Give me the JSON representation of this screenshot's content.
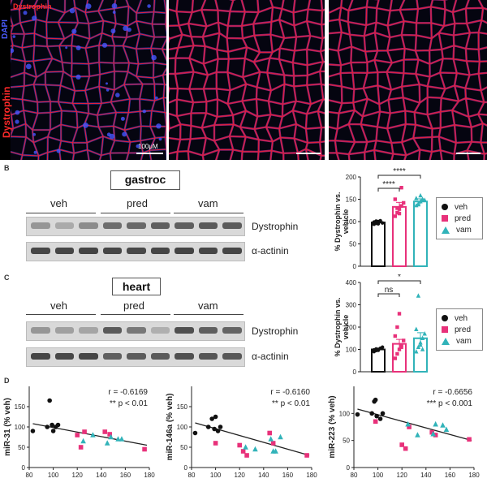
{
  "panel_a": {
    "dapi_label": "DAPI",
    "dystrophin_left_label": "Dystrophin",
    "dystrophin_top_label": "Dystrophin",
    "scale_bar_label": "100μM"
  },
  "panel_b": {
    "letter": "B",
    "title": "gastroc",
    "groups": [
      "veh",
      "pred",
      "vam"
    ],
    "rows": [
      "Dystrophin",
      "α-actinin"
    ],
    "sig_top": "****",
    "sig_second": "****"
  },
  "panel_c": {
    "letter": "C",
    "title": "heart",
    "groups": [
      "veh",
      "pred",
      "vam"
    ],
    "rows": [
      "Dystrophin",
      "α-actinin"
    ],
    "sig_top": "*",
    "sig_second": "ns"
  },
  "panel_d": {
    "letter": "D"
  },
  "legend": {
    "items": [
      "veh",
      "pred",
      "vam"
    ]
  },
  "colors": {
    "veh": "#111111",
    "pred": "#e8317a",
    "vam": "#31b3b9"
  },
  "chart_data": [
    {
      "id": "gastroc-bar",
      "type": "bar",
      "ylabel": "% Dystrophin vs. vehicle",
      "ylim": [
        0,
        200
      ],
      "yticks": [
        "0",
        "50",
        "100",
        "150",
        "200"
      ],
      "categories": [
        "veh",
        "pred",
        "vam"
      ],
      "values": [
        98,
        133,
        145
      ],
      "errors": [
        4,
        10,
        6
      ],
      "points": [
        [
          94,
          96,
          100,
          102,
          97,
          99,
          101,
          95
        ],
        [
          112,
          120,
          128,
          135,
          142,
          150,
          130,
          118,
          176
        ],
        [
          136,
          140,
          145,
          150,
          148,
          152,
          138,
          158
        ]
      ],
      "annotations": [
        "****",
        "****"
      ]
    },
    {
      "id": "heart-bar",
      "type": "bar",
      "ylabel": "% Dystrophin vs. vehicle",
      "ylim": [
        0,
        400
      ],
      "yticks": [
        "0",
        "100",
        "200",
        "300",
        "400"
      ],
      "categories": [
        "veh",
        "pred",
        "vam"
      ],
      "values": [
        100,
        125,
        150
      ],
      "errors": [
        5,
        20,
        25
      ],
      "points": [
        [
          90,
          95,
          100,
          105,
          110,
          98,
          102,
          96
        ],
        [
          60,
          80,
          100,
          120,
          140,
          160,
          200,
          260,
          110
        ],
        [
          90,
          110,
          130,
          150,
          170,
          190,
          340,
          120,
          100
        ]
      ],
      "annotations": [
        "ns",
        "*"
      ]
    },
    {
      "id": "mir31-scatter",
      "type": "scatter",
      "ylabel": "miR-31 (% veh)",
      "xlim": [
        80,
        180
      ],
      "ylim": [
        0,
        200
      ],
      "xticks": [
        "80",
        "100",
        "120",
        "140",
        "160",
        "180"
      ],
      "yticks": [
        "0",
        "50",
        "100",
        "150"
      ],
      "r_text": "r = -0.6169",
      "p_text": "** p < 0.01",
      "fit": [
        [
          83,
          108
        ],
        [
          178,
          55
        ]
      ],
      "series": [
        {
          "name": "veh",
          "points": [
            [
              83,
              90
            ],
            [
              95,
              100
            ],
            [
              97,
              165
            ],
            [
              99,
              105
            ],
            [
              100,
              90
            ],
            [
              102,
              100
            ],
            [
              104,
              105
            ]
          ]
        },
        {
          "name": "pred",
          "points": [
            [
              120,
              80
            ],
            [
              123,
              50
            ],
            [
              126,
              88
            ],
            [
              143,
              88
            ],
            [
              147,
              82
            ],
            [
              176,
              45
            ]
          ]
        },
        {
          "name": "vam",
          "points": [
            [
              125,
              65
            ],
            [
              133,
              80
            ],
            [
              145,
              60
            ],
            [
              148,
              75
            ],
            [
              154,
              70
            ],
            [
              157,
              70
            ]
          ]
        }
      ]
    },
    {
      "id": "mir146a-scatter",
      "type": "scatter",
      "ylabel": "miR-146a (% veh)",
      "xlim": [
        80,
        180
      ],
      "ylim": [
        0,
        200
      ],
      "xticks": [
        "80",
        "100",
        "120",
        "140",
        "160",
        "180"
      ],
      "yticks": [
        "0",
        "50",
        "100",
        "150"
      ],
      "r_text": "r = -0.6160",
      "p_text": "** p < 0.01",
      "fit": [
        [
          83,
          110
        ],
        [
          178,
          30
        ]
      ],
      "series": [
        {
          "name": "veh",
          "points": [
            [
              83,
              85
            ],
            [
              94,
              100
            ],
            [
              97,
              120
            ],
            [
              99,
              95
            ],
            [
              100,
              125
            ],
            [
              102,
              90
            ],
            [
              104,
              100
            ]
          ]
        },
        {
          "name": "pred",
          "points": [
            [
              100,
              60
            ],
            [
              120,
              55
            ],
            [
              123,
              40
            ],
            [
              126,
              30
            ],
            [
              145,
              85
            ],
            [
              148,
              60
            ],
            [
              176,
              30
            ]
          ]
        },
        {
          "name": "vam",
          "points": [
            [
              125,
              50
            ],
            [
              133,
              45
            ],
            [
              146,
              70
            ],
            [
              148,
              40
            ],
            [
              154,
              75
            ],
            [
              150,
              40
            ]
          ]
        }
      ]
    },
    {
      "id": "mir223-scatter",
      "type": "scatter",
      "ylabel": "miR-223 (% veh)",
      "xlim": [
        80,
        180
      ],
      "ylim": [
        0,
        150
      ],
      "xticks": [
        "80",
        "100",
        "120",
        "140",
        "160",
        "180"
      ],
      "yticks": [
        "0",
        "50",
        "100"
      ],
      "r_text": "r = -0.6656",
      "p_text": "*** p < 0.001",
      "fit": [
        [
          83,
          108
        ],
        [
          178,
          50
        ]
      ],
      "series": [
        {
          "name": "veh",
          "points": [
            [
              83,
              98
            ],
            [
              95,
              100
            ],
            [
              97,
              122
            ],
            [
              98,
              125
            ],
            [
              99,
              95
            ],
            [
              102,
              90
            ],
            [
              104,
              100
            ]
          ]
        },
        {
          "name": "pred",
          "points": [
            [
              98,
              85
            ],
            [
              120,
              42
            ],
            [
              123,
              35
            ],
            [
              126,
              75
            ],
            [
              145,
              65
            ],
            [
              148,
              60
            ],
            [
              176,
              52
            ]
          ]
        },
        {
          "name": "vam",
          "points": [
            [
              125,
              80
            ],
            [
              133,
              60
            ],
            [
              146,
              62
            ],
            [
              148,
              80
            ],
            [
              154,
              78
            ],
            [
              157,
              70
            ]
          ]
        }
      ]
    }
  ]
}
